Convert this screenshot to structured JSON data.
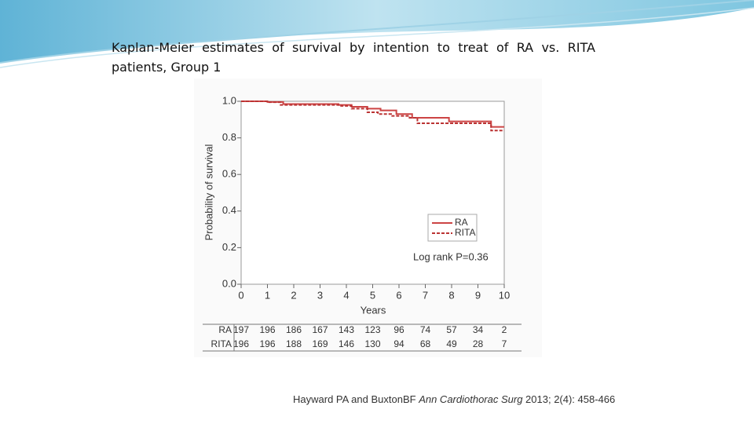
{
  "slide": {
    "title": "Kaplan-Meier estimates of survival by intention to treat of RA vs. RITA patients, Group 1",
    "citation": [
      "Hayward PA and BuxtonBF ",
      "Ann Cardiothorac Surg",
      " 2013; 2(4): 458-466"
    ]
  },
  "chart_data": {
    "type": "line",
    "step": true,
    "x_label": "Years",
    "y_label": "Probability of survival",
    "xlim": [
      0,
      10
    ],
    "ylim": [
      0,
      1
    ],
    "xticks": [
      0,
      1,
      2,
      3,
      4,
      5,
      6,
      7,
      8,
      9,
      10
    ],
    "yticks": [
      {
        "value": 0,
        "label": "0.0"
      },
      {
        "value": 0.2,
        "label": "0.2"
      },
      {
        "value": 0.4,
        "label": "0.4"
      },
      {
        "value": 0.6,
        "label": "0.6"
      },
      {
        "value": 0.8,
        "label": "0.8"
      },
      {
        "value": 1,
        "label": "1.0"
      }
    ],
    "series": [
      {
        "name": "RA",
        "color": "#cc4444",
        "dashed": false,
        "x": [
          0,
          1,
          1.6,
          3.7,
          4.2,
          4.8,
          5.3,
          5.9,
          6.5,
          7.9,
          9.5,
          10
        ],
        "values": [
          1.0,
          0.996,
          0.985,
          0.98,
          0.97,
          0.96,
          0.95,
          0.93,
          0.91,
          0.89,
          0.86,
          0.86
        ]
      },
      {
        "name": "RITA",
        "color": "#bb3333",
        "dashed": true,
        "x": [
          0,
          1,
          1.5,
          3.8,
          4.2,
          4.8,
          5.2,
          5.7,
          6.4,
          6.7,
          9.5,
          10
        ],
        "values": [
          1.0,
          0.995,
          0.98,
          0.975,
          0.96,
          0.94,
          0.93,
          0.92,
          0.91,
          0.88,
          0.84,
          0.84
        ]
      }
    ],
    "legend": "center-right",
    "annotation": "Log rank P=0.36",
    "at_risk": [
      {
        "name": "RA",
        "values": [
          197,
          196,
          186,
          167,
          143,
          123,
          96,
          74,
          57,
          34,
          2
        ]
      },
      {
        "name": "RITA",
        "values": [
          196,
          196,
          188,
          169,
          146,
          130,
          94,
          68,
          49,
          28,
          7
        ]
      }
    ]
  }
}
